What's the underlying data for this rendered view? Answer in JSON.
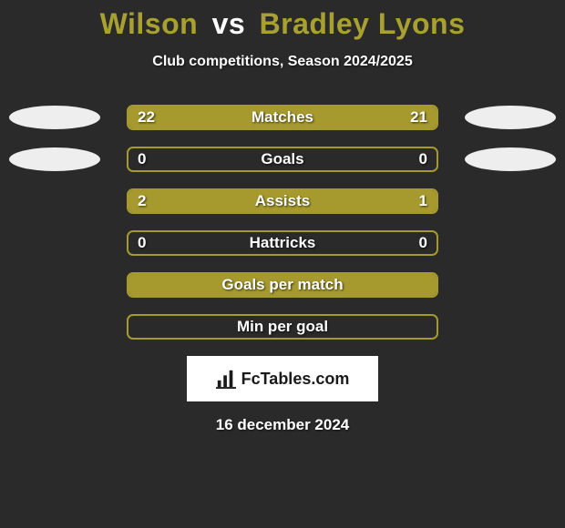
{
  "title": {
    "player1": "Wilson",
    "vs": "vs",
    "player2": "Bradley Lyons",
    "player1_color": "#a8a030",
    "player2_color": "#a8a030",
    "vs_color": "#ffffff",
    "fontsize": 32
  },
  "subtitle": "Club competitions, Season 2024/2025",
  "background_color": "#2a2a2a",
  "bar_track_width": 342,
  "colors": {
    "left_fill": "#a69a2e",
    "right_fill": "#a69a2e",
    "left_badge": "#eeeeee",
    "right_badge": "#eeeeee",
    "border": "#a69a2e",
    "text": "#ffffff"
  },
  "stats": [
    {
      "label": "Matches",
      "left_value": "22",
      "right_value": "21",
      "left_num": 22,
      "right_num": 21,
      "show_badges": true,
      "show_values": true,
      "left_fill_pct": 51.2,
      "right_fill_pct": 48.8
    },
    {
      "label": "Goals",
      "left_value": "0",
      "right_value": "0",
      "left_num": 0,
      "right_num": 0,
      "show_badges": true,
      "show_values": true,
      "left_fill_pct": 0,
      "right_fill_pct": 0
    },
    {
      "label": "Assists",
      "left_value": "2",
      "right_value": "1",
      "left_num": 2,
      "right_num": 1,
      "show_badges": false,
      "show_values": true,
      "left_fill_pct": 66.7,
      "right_fill_pct": 33.3
    },
    {
      "label": "Hattricks",
      "left_value": "0",
      "right_value": "0",
      "left_num": 0,
      "right_num": 0,
      "show_badges": false,
      "show_values": true,
      "left_fill_pct": 0,
      "right_fill_pct": 0
    },
    {
      "label": "Goals per match",
      "left_value": "",
      "right_value": "",
      "left_num": 0,
      "right_num": 0,
      "show_badges": false,
      "show_values": false,
      "left_fill_pct": 100,
      "right_fill_pct": 0,
      "full_fill": true
    },
    {
      "label": "Min per goal",
      "left_value": "",
      "right_value": "",
      "left_num": 0,
      "right_num": 0,
      "show_badges": false,
      "show_values": false,
      "left_fill_pct": 0,
      "right_fill_pct": 0
    }
  ],
  "logo": {
    "text": "FcTables.com",
    "icon_name": "bars-chart-icon"
  },
  "date": "16 december 2024"
}
